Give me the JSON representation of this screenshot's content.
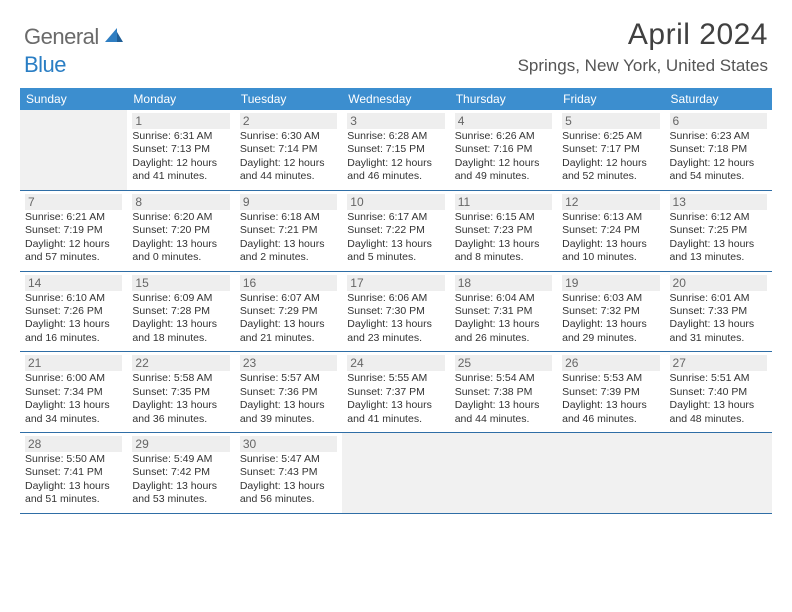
{
  "brand": {
    "general": "General",
    "blue": "Blue"
  },
  "title": "April 2024",
  "location": "Springs, New York, United States",
  "colors": {
    "header_bg": "#3c8ecf",
    "header_text": "#ffffff",
    "divider": "#2f6ea6",
    "daynum_bg": "#eeeeee",
    "daynum_text": "#666666",
    "body_text": "#333333",
    "empty_bg": "#f1f1f1",
    "logo_gray": "#6a6a6a",
    "logo_blue": "#2a7ec4"
  },
  "day_names": [
    "Sunday",
    "Monday",
    "Tuesday",
    "Wednesday",
    "Thursday",
    "Friday",
    "Saturday"
  ],
  "weeks": [
    [
      null,
      {
        "n": "1",
        "sr": "Sunrise: 6:31 AM",
        "ss": "Sunset: 7:13 PM",
        "d1": "Daylight: 12 hours",
        "d2": "and 41 minutes."
      },
      {
        "n": "2",
        "sr": "Sunrise: 6:30 AM",
        "ss": "Sunset: 7:14 PM",
        "d1": "Daylight: 12 hours",
        "d2": "and 44 minutes."
      },
      {
        "n": "3",
        "sr": "Sunrise: 6:28 AM",
        "ss": "Sunset: 7:15 PM",
        "d1": "Daylight: 12 hours",
        "d2": "and 46 minutes."
      },
      {
        "n": "4",
        "sr": "Sunrise: 6:26 AM",
        "ss": "Sunset: 7:16 PM",
        "d1": "Daylight: 12 hours",
        "d2": "and 49 minutes."
      },
      {
        "n": "5",
        "sr": "Sunrise: 6:25 AM",
        "ss": "Sunset: 7:17 PM",
        "d1": "Daylight: 12 hours",
        "d2": "and 52 minutes."
      },
      {
        "n": "6",
        "sr": "Sunrise: 6:23 AM",
        "ss": "Sunset: 7:18 PM",
        "d1": "Daylight: 12 hours",
        "d2": "and 54 minutes."
      }
    ],
    [
      {
        "n": "7",
        "sr": "Sunrise: 6:21 AM",
        "ss": "Sunset: 7:19 PM",
        "d1": "Daylight: 12 hours",
        "d2": "and 57 minutes."
      },
      {
        "n": "8",
        "sr": "Sunrise: 6:20 AM",
        "ss": "Sunset: 7:20 PM",
        "d1": "Daylight: 13 hours",
        "d2": "and 0 minutes."
      },
      {
        "n": "9",
        "sr": "Sunrise: 6:18 AM",
        "ss": "Sunset: 7:21 PM",
        "d1": "Daylight: 13 hours",
        "d2": "and 2 minutes."
      },
      {
        "n": "10",
        "sr": "Sunrise: 6:17 AM",
        "ss": "Sunset: 7:22 PM",
        "d1": "Daylight: 13 hours",
        "d2": "and 5 minutes."
      },
      {
        "n": "11",
        "sr": "Sunrise: 6:15 AM",
        "ss": "Sunset: 7:23 PM",
        "d1": "Daylight: 13 hours",
        "d2": "and 8 minutes."
      },
      {
        "n": "12",
        "sr": "Sunrise: 6:13 AM",
        "ss": "Sunset: 7:24 PM",
        "d1": "Daylight: 13 hours",
        "d2": "and 10 minutes."
      },
      {
        "n": "13",
        "sr": "Sunrise: 6:12 AM",
        "ss": "Sunset: 7:25 PM",
        "d1": "Daylight: 13 hours",
        "d2": "and 13 minutes."
      }
    ],
    [
      {
        "n": "14",
        "sr": "Sunrise: 6:10 AM",
        "ss": "Sunset: 7:26 PM",
        "d1": "Daylight: 13 hours",
        "d2": "and 16 minutes."
      },
      {
        "n": "15",
        "sr": "Sunrise: 6:09 AM",
        "ss": "Sunset: 7:28 PM",
        "d1": "Daylight: 13 hours",
        "d2": "and 18 minutes."
      },
      {
        "n": "16",
        "sr": "Sunrise: 6:07 AM",
        "ss": "Sunset: 7:29 PM",
        "d1": "Daylight: 13 hours",
        "d2": "and 21 minutes."
      },
      {
        "n": "17",
        "sr": "Sunrise: 6:06 AM",
        "ss": "Sunset: 7:30 PM",
        "d1": "Daylight: 13 hours",
        "d2": "and 23 minutes."
      },
      {
        "n": "18",
        "sr": "Sunrise: 6:04 AM",
        "ss": "Sunset: 7:31 PM",
        "d1": "Daylight: 13 hours",
        "d2": "and 26 minutes."
      },
      {
        "n": "19",
        "sr": "Sunrise: 6:03 AM",
        "ss": "Sunset: 7:32 PM",
        "d1": "Daylight: 13 hours",
        "d2": "and 29 minutes."
      },
      {
        "n": "20",
        "sr": "Sunrise: 6:01 AM",
        "ss": "Sunset: 7:33 PM",
        "d1": "Daylight: 13 hours",
        "d2": "and 31 minutes."
      }
    ],
    [
      {
        "n": "21",
        "sr": "Sunrise: 6:00 AM",
        "ss": "Sunset: 7:34 PM",
        "d1": "Daylight: 13 hours",
        "d2": "and 34 minutes."
      },
      {
        "n": "22",
        "sr": "Sunrise: 5:58 AM",
        "ss": "Sunset: 7:35 PM",
        "d1": "Daylight: 13 hours",
        "d2": "and 36 minutes."
      },
      {
        "n": "23",
        "sr": "Sunrise: 5:57 AM",
        "ss": "Sunset: 7:36 PM",
        "d1": "Daylight: 13 hours",
        "d2": "and 39 minutes."
      },
      {
        "n": "24",
        "sr": "Sunrise: 5:55 AM",
        "ss": "Sunset: 7:37 PM",
        "d1": "Daylight: 13 hours",
        "d2": "and 41 minutes."
      },
      {
        "n": "25",
        "sr": "Sunrise: 5:54 AM",
        "ss": "Sunset: 7:38 PM",
        "d1": "Daylight: 13 hours",
        "d2": "and 44 minutes."
      },
      {
        "n": "26",
        "sr": "Sunrise: 5:53 AM",
        "ss": "Sunset: 7:39 PM",
        "d1": "Daylight: 13 hours",
        "d2": "and 46 minutes."
      },
      {
        "n": "27",
        "sr": "Sunrise: 5:51 AM",
        "ss": "Sunset: 7:40 PM",
        "d1": "Daylight: 13 hours",
        "d2": "and 48 minutes."
      }
    ],
    [
      {
        "n": "28",
        "sr": "Sunrise: 5:50 AM",
        "ss": "Sunset: 7:41 PM",
        "d1": "Daylight: 13 hours",
        "d2": "and 51 minutes."
      },
      {
        "n": "29",
        "sr": "Sunrise: 5:49 AM",
        "ss": "Sunset: 7:42 PM",
        "d1": "Daylight: 13 hours",
        "d2": "and 53 minutes."
      },
      {
        "n": "30",
        "sr": "Sunrise: 5:47 AM",
        "ss": "Sunset: 7:43 PM",
        "d1": "Daylight: 13 hours",
        "d2": "and 56 minutes."
      },
      null,
      null,
      null,
      null
    ]
  ]
}
